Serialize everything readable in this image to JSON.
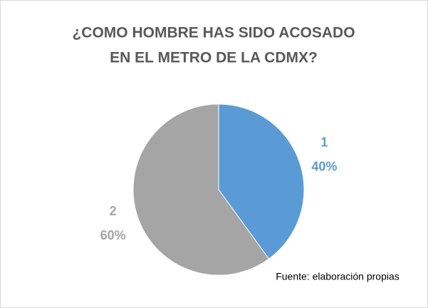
{
  "chart_data": {
    "type": "pie",
    "title": [
      "¿COMO HOMBRE HAS SIDO ACOSADO",
      "EN EL METRO DE LA CDMX?"
    ],
    "categories": [
      "1",
      "2"
    ],
    "values": [
      40,
      60
    ],
    "value_labels": [
      "40%",
      "60%"
    ],
    "colors": [
      "#5b9bd5",
      "#a5a5a5"
    ],
    "annotation": "Fuente: elaboración propias"
  }
}
